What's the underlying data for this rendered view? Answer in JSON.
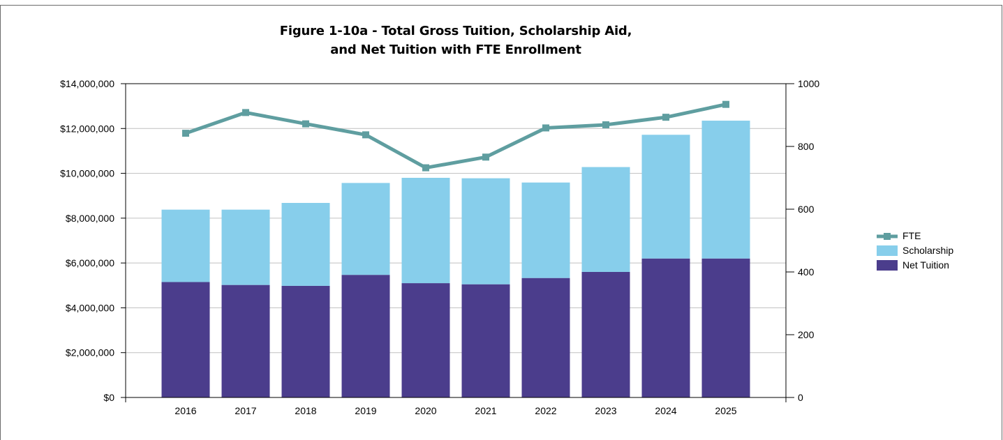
{
  "chart_data": {
    "type": "bar",
    "stacked": true,
    "title_line1": "Figure 1-10a - Total Gross Tuition, Scholarship Aid,",
    "title_line2": "and Net Tuition with FTE Enrollment",
    "categories": [
      "2016",
      "2017",
      "2018",
      "2019",
      "2020",
      "2021",
      "2022",
      "2023",
      "2024",
      "2025"
    ],
    "series": [
      {
        "name": "Net Tuition",
        "type": "bar",
        "axis": "left",
        "color": "#4b3d8c",
        "values": [
          5150000,
          5020000,
          4980000,
          5470000,
          5100000,
          5050000,
          5330000,
          5600000,
          6200000,
          6200000
        ]
      },
      {
        "name": "Scholarship",
        "type": "bar",
        "axis": "left",
        "color": "#87ceeb",
        "values": [
          3230000,
          3360000,
          3700000,
          4100000,
          4700000,
          4730000,
          4260000,
          4680000,
          5520000,
          6150000
        ]
      },
      {
        "name": "FTE",
        "type": "line",
        "axis": "right",
        "color": "#5f9ea0",
        "values": [
          842,
          908,
          872,
          837,
          732,
          766,
          859,
          869,
          893,
          934
        ]
      }
    ],
    "y_left": {
      "min": 0,
      "max": 14000000,
      "ticks": [
        0,
        2000000,
        4000000,
        6000000,
        8000000,
        10000000,
        12000000,
        14000000
      ],
      "tick_labels": [
        "$0",
        "$2,000,000",
        "$4,000,000",
        "$6,000,000",
        "$8,000,000",
        "$10,000,000",
        "$12,000,000",
        "$14,000,000"
      ]
    },
    "y_right": {
      "min": 0,
      "max": 1000,
      "ticks": [
        0,
        200,
        400,
        600,
        800,
        1000
      ],
      "tick_labels": [
        "0",
        "200",
        "400",
        "600",
        "800",
        "1000"
      ]
    },
    "grid": true,
    "legend": {
      "position": "right",
      "items": [
        {
          "label": "FTE",
          "kind": "line",
          "color": "#5f9ea0"
        },
        {
          "label": "Scholarship",
          "kind": "box",
          "color": "#87ceeb"
        },
        {
          "label": "Net Tuition",
          "kind": "box",
          "color": "#4b3d8c"
        }
      ]
    }
  }
}
